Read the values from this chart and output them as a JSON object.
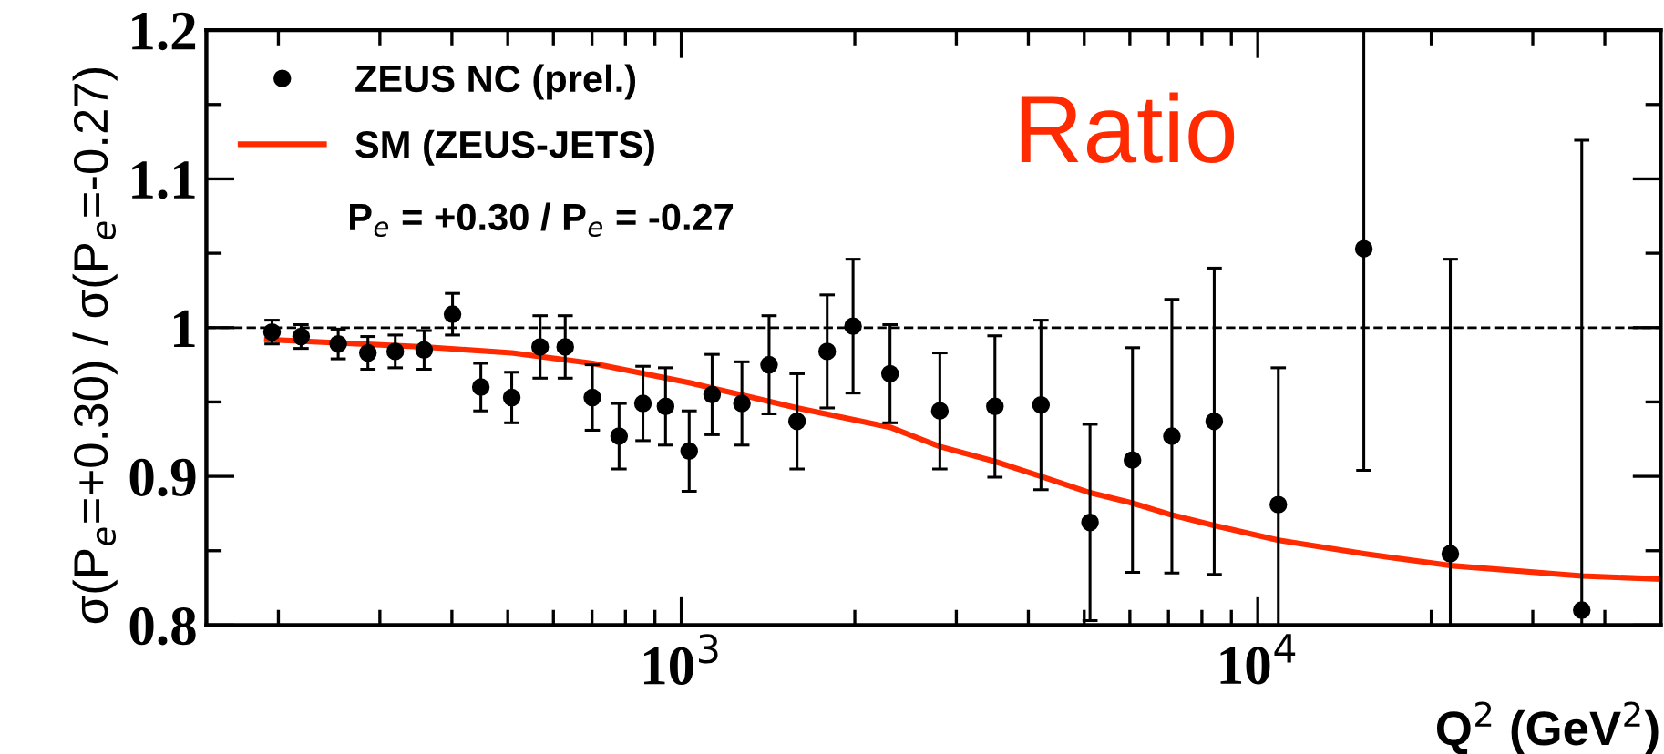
{
  "chart_data": {
    "type": "scatter",
    "xlabel": "Q$^{2}$ (GeV$^{2}$)",
    "ylabel": "σ(P$_{e}$=+0.30) / σ(P$_{e}$=-0.27)",
    "legend": "top left",
    "log": "x",
    "grid": false,
    "xlim": [
      150,
      50000
    ],
    "xticks": [
      {
        "value": 1000,
        "label": "10$^{3}$"
      },
      {
        "value": 10000,
        "label": "10$^{4}$"
      }
    ],
    "ylim": [
      0.8,
      1.2
    ],
    "yticks": [
      0.8,
      0.9,
      {
        "value": 1.0,
        "label": "1"
      },
      1.1,
      1.2
    ],
    "ref_lines": [
      {
        "axis": "y",
        "value": 1.0,
        "color": "#000000",
        "line_style": "dashed"
      }
    ],
    "annotations": [
      "P$_{e}$ = +0.30 / P$_{e}$ = -0.27",
      "Ratio"
    ],
    "series": [
      {
        "name": "ZEUS NC (prel.)",
        "color": "#000000",
        "marker": "circle",
        "x": [
          195,
          219,
          254,
          286,
          319,
          358,
          401,
          449,
          508,
          569,
          629,
          701,
          780,
          858,
          939,
          1032,
          1131,
          1274,
          1420,
          1588,
          1791,
          1986,
          2302,
          2809,
          3500,
          4207,
          5117,
          6063,
          7096,
          8404,
          10856,
          15276,
          21580,
          36480
        ],
        "values": [
          0.997,
          0.994,
          0.989,
          0.983,
          0.984,
          0.985,
          1.009,
          0.96,
          0.953,
          0.987,
          0.987,
          0.953,
          0.927,
          0.949,
          0.947,
          0.917,
          0.955,
          0.949,
          0.975,
          0.937,
          0.984,
          1.001,
          0.969,
          0.944,
          0.947,
          0.948,
          0.869,
          0.911,
          0.927,
          0.937,
          0.881,
          1.053,
          0.848,
          0.81
        ],
        "errors": [
          0.008,
          0.008,
          0.01,
          0.011,
          0.011,
          0.013,
          0.014,
          0.016,
          0.017,
          0.021,
          0.021,
          0.022,
          0.022,
          0.025,
          0.026,
          0.027,
          0.027,
          0.028,
          0.033,
          0.032,
          0.038,
          0.045,
          0.033,
          0.039,
          0.0475,
          0.057,
          0.066,
          0.0755,
          0.092,
          0.103,
          [
            0.8,
            0.973
          ],
          [
            0.904,
            1.2
          ],
          [
            0.8,
            1.046
          ],
          [
            0.8,
            1.126
          ]
        ]
      },
      {
        "name": "SM (ZEUS-JETS)",
        "type": "line",
        "color": "#ff2a00",
        "marker": "none",
        "line_style": "solid",
        "x": [
          191,
          358,
          508,
          701,
          1032,
          1588,
          2302,
          2809,
          3499,
          4207,
          5117,
          6067,
          7096,
          8395,
          10864,
          15276,
          21577,
          36475,
          49700
        ],
        "values": [
          0.992,
          0.987,
          0.983,
          0.976,
          0.963,
          0.946,
          0.933,
          0.92,
          0.91,
          0.9,
          0.889,
          0.882,
          0.874,
          0.867,
          0.857,
          0.848,
          0.84,
          0.833,
          0.831
        ]
      }
    ]
  }
}
